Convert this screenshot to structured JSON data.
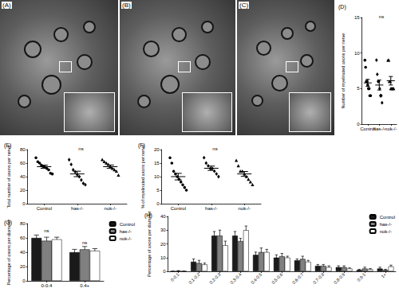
{
  "micrographs": [
    {
      "label": "(A)"
    },
    {
      "label": "(B)"
    },
    {
      "label": "(C)"
    }
  ],
  "chart_data": [
    {
      "type": "dot",
      "title": "(D)",
      "y_label": "Number of myelinated axons per nerve",
      "categories": [
        "Control",
        "has-/-",
        "nok-/-"
      ],
      "groups": [
        {
          "marker": "circle",
          "color": "#000000",
          "values": [
            9,
            8,
            6,
            6,
            5.5,
            5,
            5,
            4,
            4
          ],
          "mean": 5.8,
          "error": 0.5
        },
        {
          "marker": "diamond",
          "color": "#000000",
          "values": [
            9,
            7,
            6,
            6,
            5,
            4,
            4,
            3
          ],
          "mean": 5.5,
          "error": 0.7
        },
        {
          "marker": "triangle",
          "color": "#000000",
          "values": [
            9,
            9,
            6,
            6,
            5,
            5,
            5,
            5,
            5
          ],
          "mean": 6.1,
          "error": 0.6
        }
      ],
      "ylim": [
        0,
        15
      ],
      "yticks": [
        0,
        5,
        10,
        15
      ],
      "grid": false,
      "annotations": [
        {
          "text": "ns"
        }
      ]
    },
    {
      "type": "dot",
      "title": "(E)",
      "y_label": "Total number of axons per nerve",
      "categories": [
        "Control",
        "has-/-",
        "nok-/-"
      ],
      "groups": [
        {
          "marker": "circle",
          "color": "#000000",
          "values": [
            68,
            62,
            60,
            57,
            55,
            54,
            52,
            50,
            45,
            44
          ],
          "mean": 54.7,
          "error": 2.3
        },
        {
          "marker": "diamond",
          "color": "#000000",
          "values": [
            65,
            58,
            50,
            47,
            43,
            40,
            35,
            30,
            28
          ],
          "mean": 44,
          "error": 4
        },
        {
          "marker": "triangle",
          "color": "#000000",
          "values": [
            65,
            62,
            60,
            58,
            55,
            52,
            50,
            48,
            42
          ],
          "mean": 54.7,
          "error": 2.5
        }
      ],
      "ylim": [
        0,
        80
      ],
      "yticks": [
        0,
        20,
        40,
        60,
        80
      ],
      "grid": false,
      "annotations": [
        {
          "text": "ns"
        }
      ]
    },
    {
      "type": "dot",
      "title": "(F)",
      "y_label": "% of myelinated axons per nerve",
      "categories": [
        "Control",
        "has-/-",
        "nok-/-"
      ],
      "groups": [
        {
          "marker": "circle",
          "color": "#000000",
          "values": [
            17,
            15,
            12,
            11,
            10,
            9,
            8,
            7,
            6,
            5
          ],
          "mean": 10,
          "error": 1.2
        },
        {
          "marker": "diamond",
          "color": "#000000",
          "values": [
            17,
            15,
            14,
            13,
            13,
            12,
            11,
            10
          ],
          "mean": 13.1,
          "error": 0.8
        },
        {
          "marker": "triangle",
          "color": "#000000",
          "values": [
            16,
            14,
            12,
            12,
            11,
            10,
            9,
            8,
            7
          ],
          "mean": 11,
          "error": 0.9
        }
      ],
      "ylim": [
        0,
        20
      ],
      "yticks": [
        0,
        5,
        10,
        15,
        20
      ],
      "grid": false,
      "annotations": [
        {
          "text": "ns"
        }
      ]
    },
    {
      "type": "bar",
      "title": "(G)",
      "y_label": "Percentage of axons per diameter",
      "categories": [
        "0-0.4",
        "0.4+"
      ],
      "series": [
        {
          "name": "Control",
          "color": "#1a1a1a",
          "values": [
            60,
            40
          ],
          "errors": [
            4,
            4
          ]
        },
        {
          "name": "has-/-",
          "color": "#808080",
          "values": [
            56,
            44
          ],
          "errors": [
            5,
            4
          ]
        },
        {
          "name": "nok-/-",
          "color": "#ffffff",
          "values": [
            58,
            42
          ],
          "errors": [
            3,
            3
          ]
        }
      ],
      "ylim": [
        0,
        80
      ],
      "yticks": [
        0,
        20,
        40,
        60,
        80
      ],
      "grid": false,
      "legend": "top-right",
      "annotations": [
        {
          "text": "ns",
          "category": "0-0.4"
        },
        {
          "text": "ns",
          "category": "0.4+"
        }
      ]
    },
    {
      "type": "bar",
      "title": "(H)",
      "y_label": "Percentage of axons per diameter",
      "categories": [
        "0-0.1",
        "0.1-0.2",
        "0.2-0.3",
        "0.3-0.4",
        "0.4-0.5",
        "0.5-0.6",
        "0.6-0.7",
        "0.7-0.8",
        "0.8-0.9",
        "0.9-1",
        "1+"
      ],
      "series": [
        {
          "name": "Control",
          "color": "#1a1a1a",
          "values": [
            0,
            7,
            26,
            26,
            12,
            10,
            8,
            4,
            3,
            1,
            2
          ],
          "errors": [
            0,
            2,
            3,
            3,
            2,
            2,
            1,
            1,
            1,
            0.5,
            1
          ]
        },
        {
          "name": "has-/-",
          "color": "#808080",
          "values": [
            0.3,
            6,
            26,
            22,
            14,
            11,
            9,
            4,
            3,
            2,
            1
          ],
          "errors": [
            0.2,
            2,
            4,
            2,
            3,
            2,
            2,
            1,
            1,
            1,
            0.5
          ]
        },
        {
          "name": "nok-/-",
          "color": "#ffffff",
          "values": [
            0,
            5,
            19,
            30,
            14,
            10,
            7,
            3,
            2,
            1.5,
            3.5
          ],
          "errors": [
            0,
            1,
            3,
            3,
            2,
            1,
            1,
            1,
            0.5,
            0.5,
            1
          ]
        }
      ],
      "ylim": [
        0,
        40
      ],
      "yticks": [
        0,
        10,
        20,
        30,
        40
      ],
      "grid": false,
      "legend": "top-right"
    }
  ]
}
